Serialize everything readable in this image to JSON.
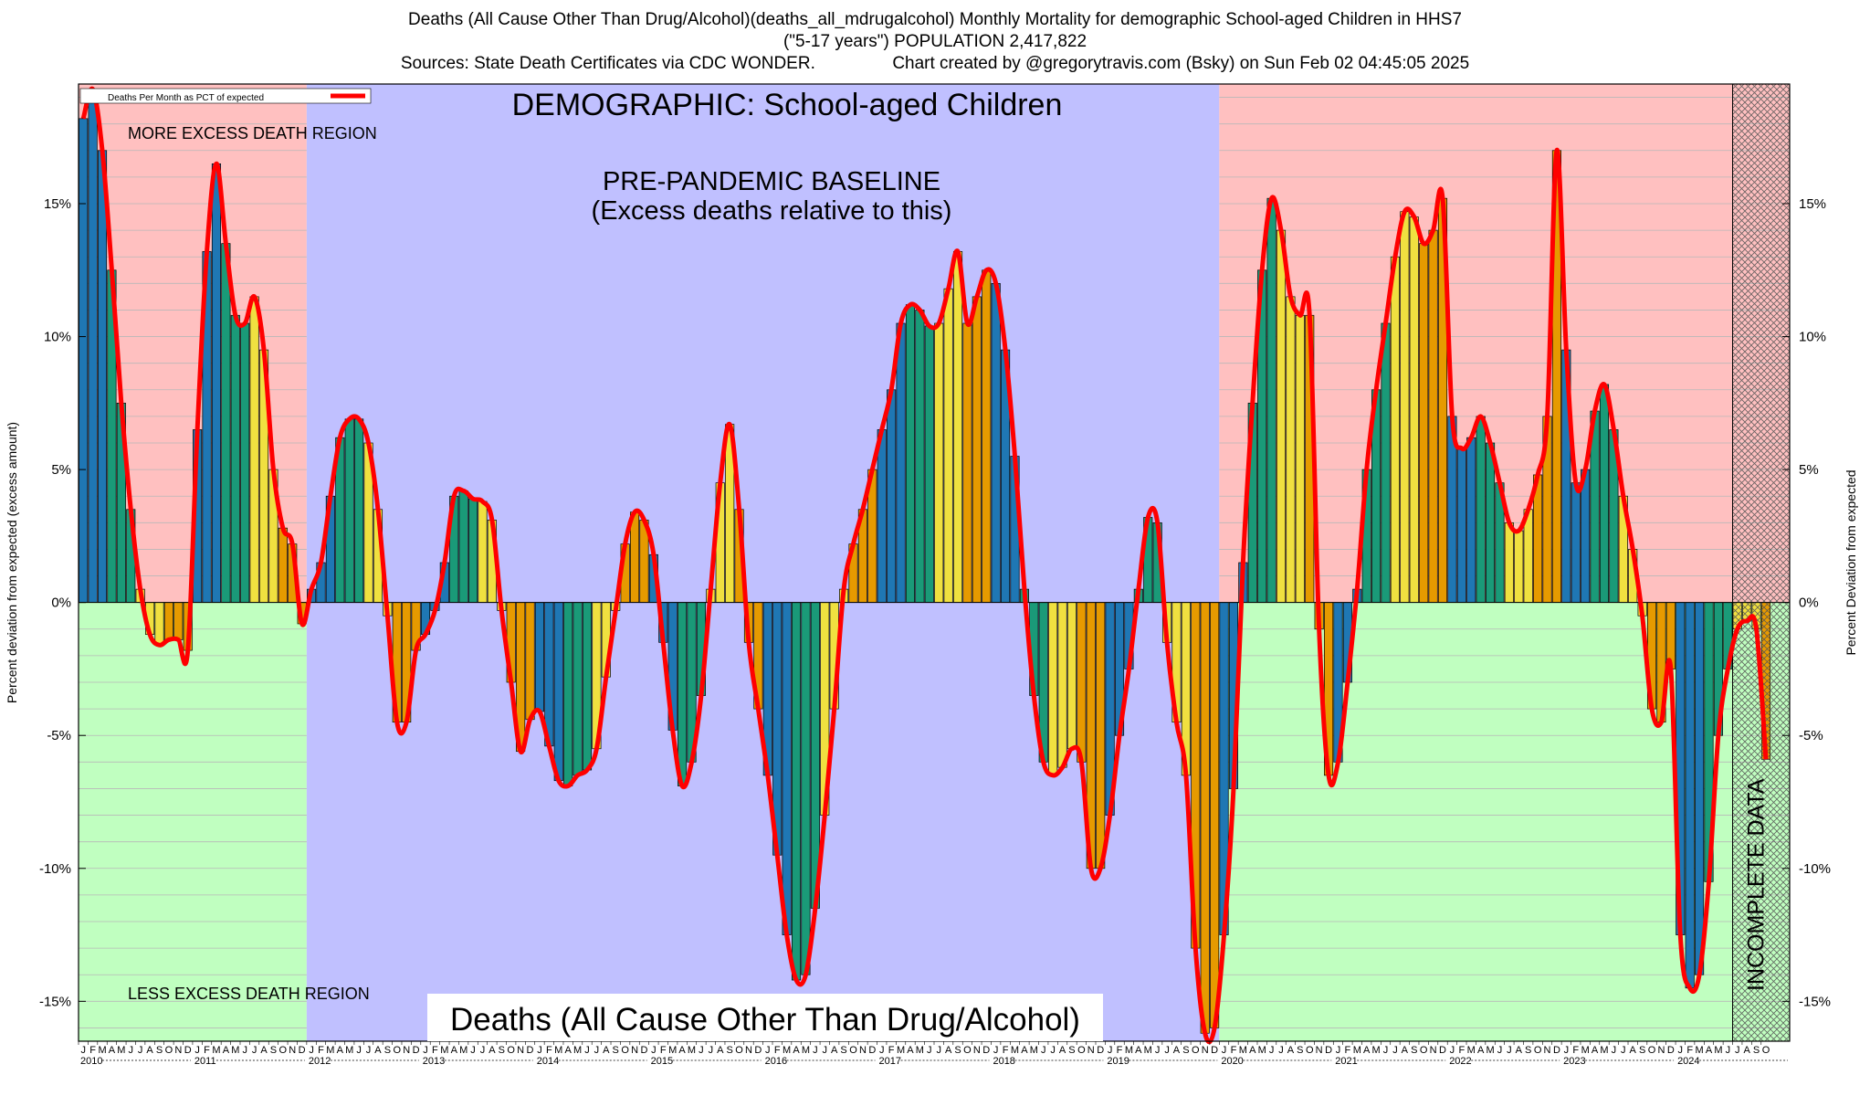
{
  "title": {
    "line1": "Deaths (All Cause Other Than Drug/Alcohol)(deaths_all_mdrugalcohol) Monthly Mortality for demographic School-aged Children in HHS7",
    "line2": "(\"5-17 years\") POPULATION 2,417,822",
    "line3": "Sources: State Death Certificates via CDC WONDER.                Chart created by @gregorytravis.com (Bsky) on Sun Feb 02 04:45:05 2025"
  },
  "annotations": {
    "demographic": "DEMOGRAPHIC: School-aged Children",
    "baseline_line1": "PRE-PANDEMIC BASELINE",
    "baseline_line2": "(Excess deaths relative to this)",
    "more_region": "MORE EXCESS DEATH REGION",
    "less_region": "LESS EXCESS DEATH REGION",
    "bottom_label": "Deaths (All Cause Other Than Drug/Alcohol)",
    "incomplete": "INCOMPLETE DATA",
    "legend": "Deaths Per Month as PCT of expected"
  },
  "colors": {
    "more_region": "#ffc0c0",
    "less_region": "#c0ffc0",
    "baseline_region": "#c0c0ff",
    "line": "#ff0000",
    "season_colors": [
      "#1f77b4",
      "#1a9a78",
      "#f0e040",
      "#e69a00"
    ]
  },
  "chart_data": {
    "type": "bar",
    "ylabel_left": "Percent deviation from expected (excess amount)",
    "ylabel_right": "Percent Deviation from expected",
    "ylim": [
      -16.5,
      19.5
    ],
    "yticks": [
      "-15%",
      "-10%",
      "-5%",
      "0%",
      "5%",
      "10%",
      "15%"
    ],
    "ytick_values": [
      -15,
      -10,
      -5,
      0,
      5,
      10,
      15
    ],
    "month_letters": [
      "J",
      "F",
      "M",
      "A",
      "M",
      "J",
      "J",
      "A",
      "S",
      "O",
      "N",
      "D"
    ],
    "years": [
      "2010",
      "2011",
      "2012",
      "2013",
      "2014",
      "2015",
      "2016",
      "2017",
      "2018",
      "2019",
      "2020",
      "2021",
      "2022",
      "2023",
      "2024"
    ],
    "start": "2010-01",
    "end": "2024-10",
    "baseline_period": [
      "2012-01",
      "2019-12"
    ],
    "incomplete_period": [
      "2024-07",
      "2024-10"
    ],
    "series": [
      {
        "name": "Deaths Per Month as PCT of expected",
        "values": [
          18.2,
          19.3,
          17.0,
          12.5,
          7.5,
          3.5,
          0.5,
          -1.2,
          -1.6,
          -1.4,
          -1.4,
          -1.8,
          6.5,
          13.2,
          16.5,
          13.5,
          10.8,
          10.5,
          11.5,
          9.5,
          5.0,
          2.8,
          2.2,
          -0.8,
          0.5,
          1.5,
          4.0,
          6.2,
          6.9,
          6.9,
          6.0,
          3.5,
          -0.5,
          -4.5,
          -4.5,
          -1.8,
          -1.2,
          -0.3,
          1.5,
          4.0,
          4.2,
          3.9,
          3.8,
          3.1,
          -0.3,
          -3.0,
          -5.6,
          -4.4,
          -4.1,
          -5.4,
          -6.7,
          -6.9,
          -6.5,
          -6.3,
          -5.5,
          -2.8,
          -0.3,
          2.2,
          3.4,
          3.1,
          1.8,
          -1.5,
          -4.8,
          -6.9,
          -6.0,
          -3.5,
          0.5,
          4.5,
          6.7,
          3.5,
          -1.5,
          -4.0,
          -6.5,
          -9.5,
          -12.5,
          -14.2,
          -14.0,
          -11.5,
          -8.0,
          -4.0,
          0.5,
          2.2,
          3.5,
          5.0,
          6.5,
          8.0,
          10.5,
          11.2,
          11.0,
          10.4,
          10.5,
          11.8,
          13.2,
          10.5,
          11.5,
          12.5,
          12.0,
          9.5,
          5.5,
          0.5,
          -3.5,
          -6.0,
          -6.5,
          -6.2,
          -5.5,
          -6.0,
          -10.0,
          -10.0,
          -8.0,
          -5.0,
          -2.5,
          0.5,
          3.2,
          3.0,
          -1.5,
          -4.5,
          -6.5,
          -13.0,
          -16.2,
          -16.0,
          -12.5,
          -7.0,
          1.5,
          7.5,
          12.5,
          15.2,
          14.0,
          11.5,
          10.8,
          10.8,
          -1.0,
          -6.5,
          -6.0,
          -3.0,
          0.5,
          5.0,
          8.0,
          10.5,
          13.0,
          14.7,
          14.5,
          13.5,
          14.0,
          15.2,
          7.0,
          5.8,
          6.2,
          7.0,
          6.0,
          4.5,
          3.0,
          2.7,
          3.5,
          4.8,
          7.0,
          17.0,
          9.5,
          4.5,
          5.0,
          7.2,
          8.2,
          6.5,
          4.0,
          2.0,
          -0.5,
          -4.0,
          -4.5,
          -2.5,
          -12.5,
          -14.5,
          -14.0,
          -10.5,
          -5.0,
          -2.5,
          -1.0,
          -0.7,
          -1.0,
          -5.9
        ]
      }
    ]
  }
}
